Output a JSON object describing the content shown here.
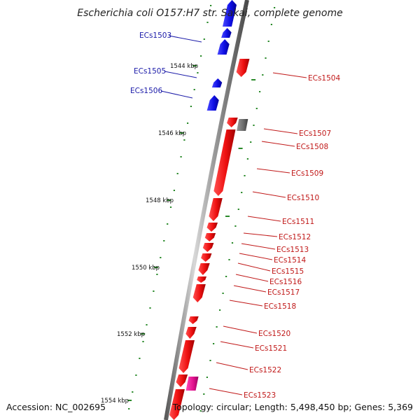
{
  "title": "Escherichia coli O157:H7 str. Sakai, complete genome",
  "footer": {
    "accession": "Accession: NC_002695",
    "topology": "Topology: circular; Length: 5,498,450 bp; Genes: 5,369"
  },
  "colors": {
    "forward_gene": "#1010e0",
    "reverse_gene": "#e81010",
    "pseudo_gene": "#707070",
    "rna_gene": "#e0108c",
    "tick": "#2a8a2a",
    "label_blue": "#1a1aa8",
    "label_red": "#c01818"
  },
  "kbp_labels": [
    "1544 kbp",
    "1546 kbp",
    "1548 kbp",
    "1550 kbp",
    "1552 kbp",
    "1554 kbp"
  ],
  "left_labels": [
    "ECs1503",
    "ECs1505",
    "ECs1506"
  ],
  "right_labels": [
    "ECs1504",
    "ECs1507",
    "ECs1508",
    "ECs1509",
    "ECs1510",
    "ECs1511",
    "ECs1512",
    "ECs1513",
    "ECs1514",
    "ECs1515",
    "ECs1516",
    "ECs1517",
    "ECs1518",
    "ECs1520",
    "ECs1521",
    "ECs1522",
    "ECs1523"
  ]
}
